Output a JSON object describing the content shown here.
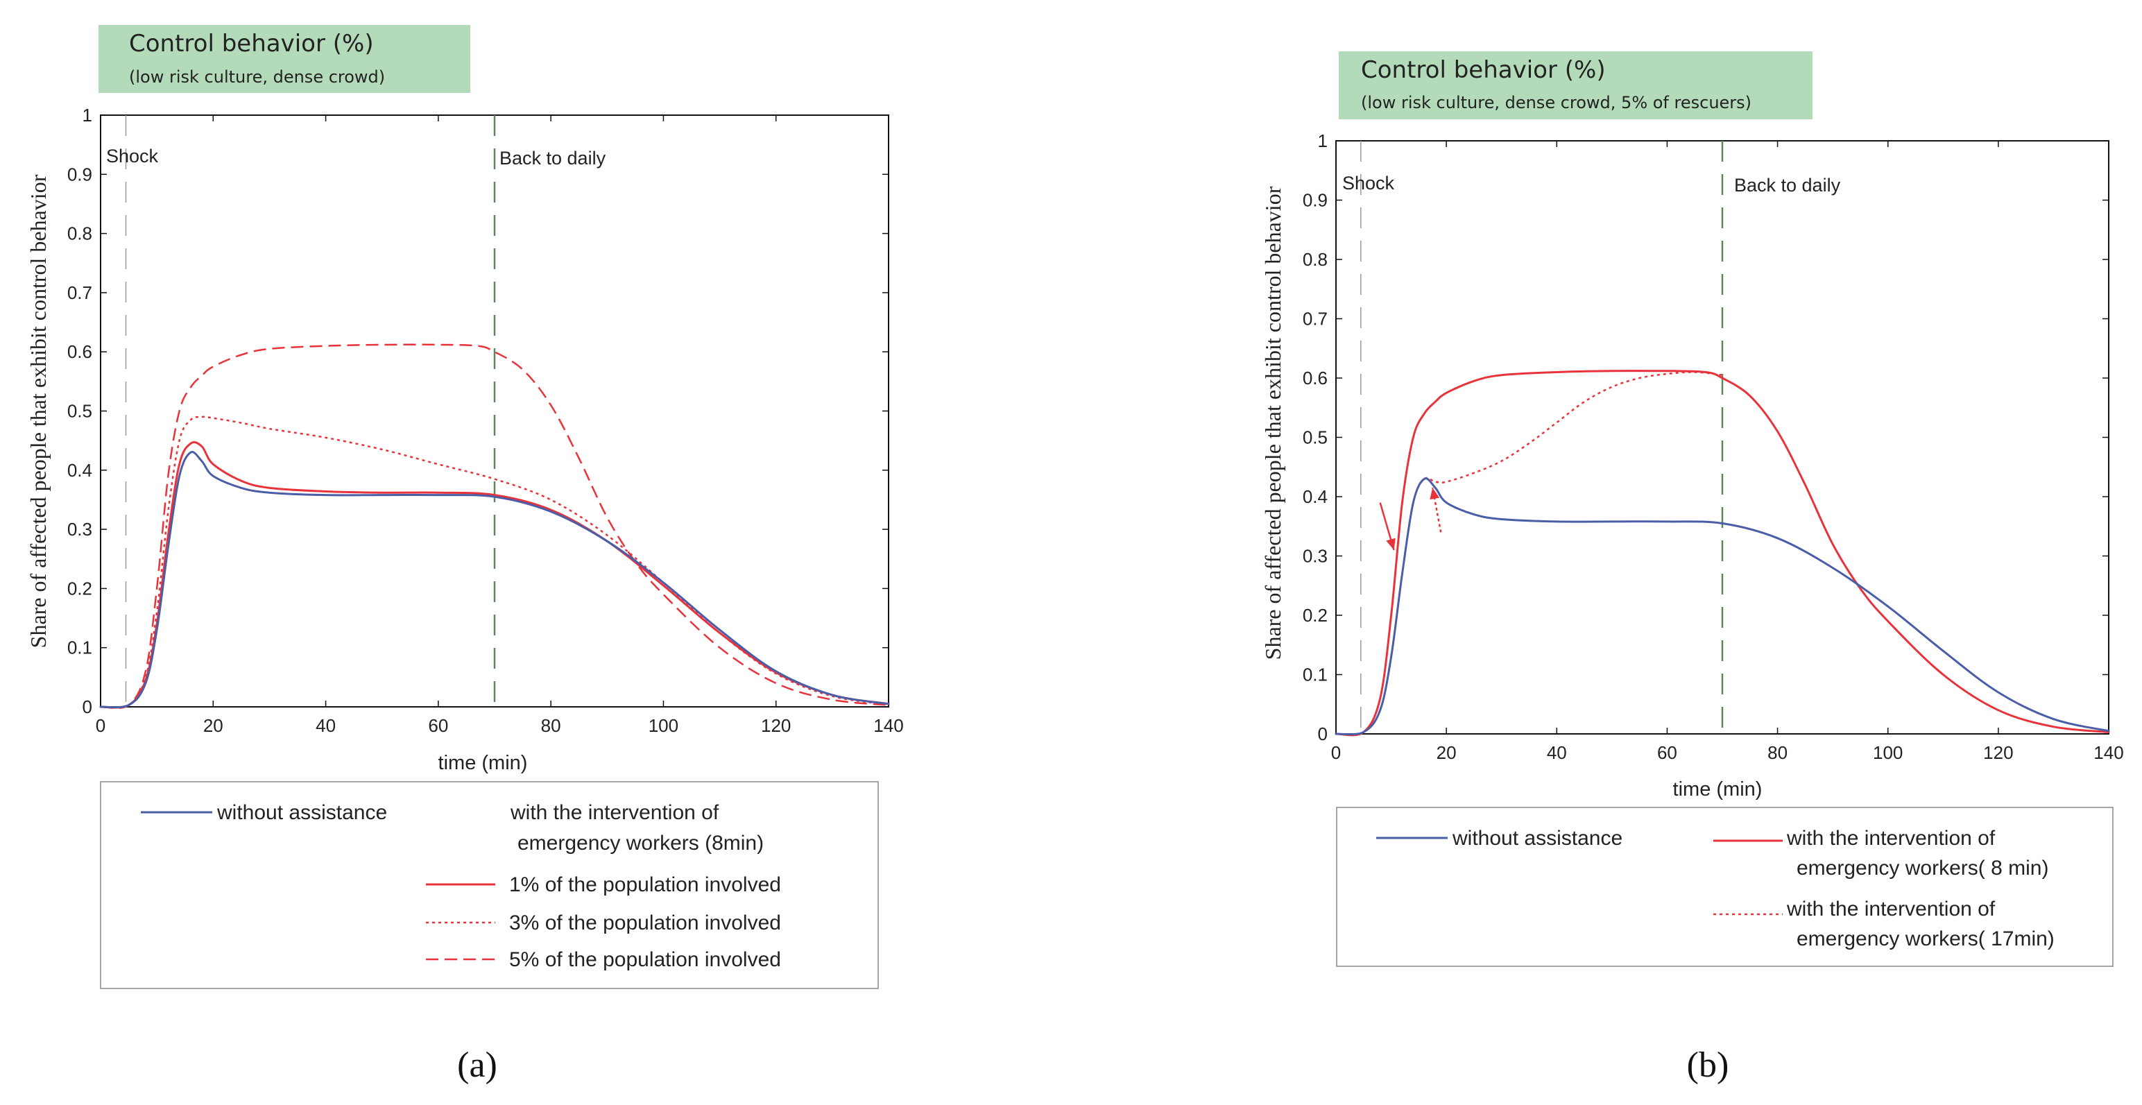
{
  "panels": [
    {
      "id": "a",
      "header_title": "Control behavior (%)",
      "header_subtitle": "(low risk culture, dense crowd)",
      "panel_label": "(a)",
      "xlabel": "time  (min)",
      "ylabel": "Share of affected people that exhibit control behavior",
      "annotations": {
        "shock": "Shock",
        "back": "Back to daily"
      },
      "legend": {
        "without": "without assistance",
        "group_title_line1": "with the intervention of",
        "group_title_line2": "emergency workers (8min)",
        "entries": [
          "1% of the population involved",
          "3% of the population involved",
          "5% of the population involved"
        ]
      }
    },
    {
      "id": "b",
      "header_title": "Control behavior (%)",
      "header_subtitle": "(low risk culture, dense crowd, 5% of rescuers)",
      "panel_label": "(b)",
      "xlabel": "time  (min)",
      "ylabel": "Share of affected people that exhibit control behavior",
      "annotations": {
        "shock": "Shock",
        "back": "Back to daily"
      },
      "legend": {
        "without": "without assistance",
        "entries": [
          {
            "line1": "with the intervention of",
            "line2": "emergency workers( 8 min)"
          },
          {
            "line1": "with the intervention of",
            "line2": "emergency workers( 17min)"
          }
        ]
      }
    }
  ],
  "chart_data": [
    {
      "type": "line",
      "title": "Control behavior (%)",
      "subtitle": "(low risk culture, dense crowd)",
      "xlabel": "time  (min)",
      "ylabel": "Share of affected people that exhibit control behavior",
      "xlim": [
        0,
        140
      ],
      "ylim": [
        0,
        1
      ],
      "xticks": [
        "0",
        "20",
        "40",
        "60",
        "80",
        "100",
        "120",
        "140"
      ],
      "yticks": [
        "0",
        "0.1",
        "0.2",
        "0.3",
        "0.4",
        "0.5",
        "0.6",
        "0.7",
        "0.8",
        "0.9",
        "1"
      ],
      "vlines": [
        {
          "x": 4.5,
          "label": "Shock",
          "color": "#9a9a9a"
        },
        {
          "x": 70,
          "label": "Back to daily",
          "color": "#5a8a5a"
        }
      ],
      "series": [
        {
          "name": "without assistance",
          "color": "#4a5ea8",
          "style": "solid",
          "x": [
            0,
            5,
            8,
            10,
            12,
            14,
            16,
            18,
            20,
            25,
            30,
            40,
            50,
            60,
            70,
            80,
            90,
            100,
            110,
            120,
            130,
            140
          ],
          "y": [
            0,
            0.003,
            0.04,
            0.13,
            0.27,
            0.39,
            0.43,
            0.415,
            0.39,
            0.37,
            0.362,
            0.358,
            0.358,
            0.358,
            0.355,
            0.33,
            0.28,
            0.21,
            0.13,
            0.06,
            0.02,
            0.005
          ]
        },
        {
          "name": "1% of the population involved",
          "color": "#e8333a",
          "style": "solid",
          "x": [
            0,
            5,
            8,
            10,
            12,
            14,
            16,
            18,
            20,
            25,
            30,
            40,
            50,
            60,
            70,
            80,
            90,
            100,
            110,
            120,
            130,
            140
          ],
          "y": [
            0,
            0.003,
            0.045,
            0.14,
            0.29,
            0.41,
            0.445,
            0.44,
            0.41,
            0.382,
            0.37,
            0.364,
            0.362,
            0.362,
            0.358,
            0.333,
            0.28,
            0.205,
            0.125,
            0.058,
            0.02,
            0.005
          ]
        },
        {
          "name": "3% of the population involved",
          "color": "#e8333a",
          "style": "dotted",
          "x": [
            0,
            5,
            8,
            10,
            12,
            14,
            16,
            18,
            20,
            25,
            30,
            40,
            50,
            60,
            70,
            80,
            90,
            100,
            110,
            120,
            130,
            140
          ],
          "y": [
            0,
            0.003,
            0.05,
            0.16,
            0.33,
            0.45,
            0.485,
            0.49,
            0.488,
            0.48,
            0.47,
            0.455,
            0.435,
            0.41,
            0.385,
            0.35,
            0.29,
            0.21,
            0.125,
            0.056,
            0.018,
            0.004
          ]
        },
        {
          "name": "5% of the population involved",
          "color": "#e8333a",
          "style": "dashed",
          "x": [
            0,
            5,
            8,
            10,
            12,
            14,
            16,
            18,
            20,
            25,
            30,
            40,
            50,
            60,
            67,
            70,
            75,
            80,
            85,
            90,
            95,
            100,
            110,
            120,
            130,
            140
          ],
          "y": [
            0,
            0.003,
            0.06,
            0.2,
            0.39,
            0.5,
            0.54,
            0.56,
            0.575,
            0.595,
            0.605,
            0.61,
            0.612,
            0.612,
            0.61,
            0.6,
            0.57,
            0.51,
            0.42,
            0.32,
            0.245,
            0.19,
            0.1,
            0.04,
            0.012,
            0.003
          ]
        }
      ]
    },
    {
      "type": "line",
      "title": "Control behavior (%)",
      "subtitle": "(low risk culture, dense crowd, 5% of rescuers)",
      "xlabel": "time  (min)",
      "ylabel": "Share of affected people that exhibit control behavior",
      "xlim": [
        0,
        140
      ],
      "ylim": [
        0,
        1
      ],
      "xticks": [
        "0",
        "20",
        "40",
        "60",
        "80",
        "100",
        "120",
        "140"
      ],
      "yticks": [
        "0",
        "0.1",
        "0.2",
        "0.3",
        "0.4",
        "0.5",
        "0.6",
        "0.7",
        "0.8",
        "0.9",
        "1"
      ],
      "vlines": [
        {
          "x": 4.5,
          "label": "Shock",
          "color": "#9a9a9a"
        },
        {
          "x": 70,
          "label": "Back to daily",
          "color": "#5a8a5a"
        }
      ],
      "arrows": [
        {
          "from": [
            8,
            0.39
          ],
          "to": [
            10.5,
            0.31
          ],
          "style": "solid",
          "color": "#e8333a"
        },
        {
          "from": [
            19,
            0.34
          ],
          "to": [
            17.5,
            0.415
          ],
          "style": "dotted",
          "color": "#e8333a"
        }
      ],
      "series": [
        {
          "name": "without assistance",
          "color": "#4a5ea8",
          "style": "solid",
          "x": [
            0,
            5,
            8,
            10,
            12,
            14,
            16,
            18,
            20,
            25,
            30,
            40,
            50,
            60,
            70,
            80,
            90,
            100,
            110,
            120,
            130,
            140
          ],
          "y": [
            0,
            0.003,
            0.04,
            0.13,
            0.27,
            0.39,
            0.43,
            0.415,
            0.39,
            0.37,
            0.362,
            0.358,
            0.358,
            0.358,
            0.355,
            0.33,
            0.28,
            0.215,
            0.14,
            0.07,
            0.025,
            0.005
          ]
        },
        {
          "name": "with the intervention of emergency workers( 8 min)",
          "color": "#e8333a",
          "style": "solid",
          "x": [
            0,
            5,
            8,
            10,
            12,
            14,
            16,
            18,
            20,
            25,
            30,
            40,
            50,
            60,
            67,
            70,
            75,
            80,
            85,
            90,
            95,
            100,
            110,
            120,
            130,
            140
          ],
          "y": [
            0,
            0.003,
            0.06,
            0.2,
            0.39,
            0.5,
            0.54,
            0.56,
            0.575,
            0.595,
            0.605,
            0.61,
            0.612,
            0.612,
            0.61,
            0.6,
            0.57,
            0.51,
            0.42,
            0.32,
            0.245,
            0.19,
            0.1,
            0.04,
            0.012,
            0.003
          ]
        },
        {
          "name": "with the intervention of emergency workers( 17min)",
          "color": "#e8333a",
          "style": "dotted",
          "x": [
            0,
            5,
            8,
            10,
            12,
            14,
            16,
            18,
            20,
            25,
            30,
            35,
            40,
            45,
            50,
            55,
            60,
            65,
            70
          ],
          "y": [
            0,
            0.003,
            0.04,
            0.13,
            0.27,
            0.39,
            0.43,
            0.425,
            0.425,
            0.44,
            0.46,
            0.49,
            0.525,
            0.56,
            0.585,
            0.6,
            0.607,
            0.61,
            0.605
          ]
        }
      ]
    }
  ]
}
